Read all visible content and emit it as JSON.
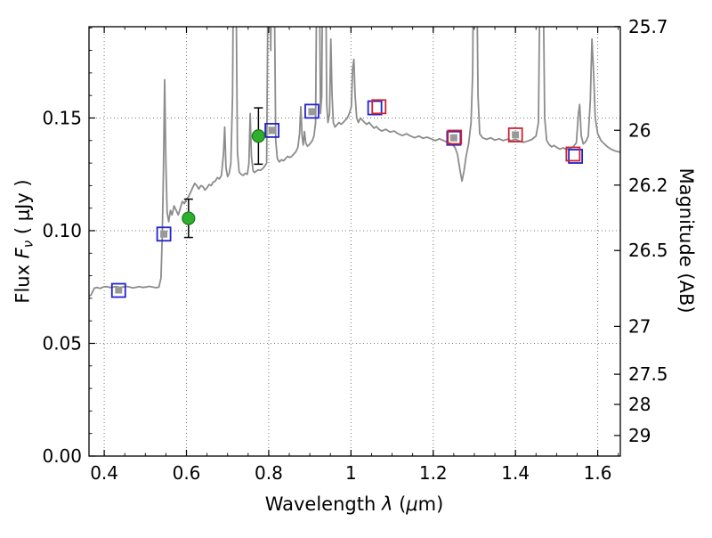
{
  "labels": {
    "xlabel_pre": "Wavelength ",
    "xlabel_lambda": "λ",
    "xlabel_mid": " (",
    "xlabel_mu": "μ",
    "xlabel_post": "m)",
    "ylabel_left_pre": "Flux ",
    "ylabel_left_F": "F",
    "ylabel_left_nu": "ν",
    "ylabel_left_suffix": " ( μJy )",
    "ylabel_right": "Magnitude (AB)"
  },
  "chart_data": {
    "type": "line",
    "title": "",
    "xlabel": "Wavelength λ (μm)",
    "ylabel_left": "Flux Fν ( μJy )",
    "ylabel_right": "Magnitude (AB)",
    "xlim": [
      0.363,
      1.655
    ],
    "ylim_flux": [
      0.0,
      0.1905
    ],
    "grid": true,
    "mag_zeropoint": 23.9,
    "x_ticks": {
      "values": [
        0.4,
        0.6,
        0.8,
        1.0,
        1.2,
        1.4,
        1.6
      ],
      "labels": [
        "0.4",
        "0.6",
        "0.8",
        "1",
        "1.2",
        "1.4",
        "1.6"
      ],
      "minor_step": 0.05
    },
    "y_left_ticks": {
      "values": [
        0.0,
        0.05,
        0.1,
        0.15
      ],
      "labels": [
        "0.00",
        "0.05",
        "0.10",
        "0.15"
      ],
      "minor_step": 0.01
    },
    "y_right_ticks": {
      "values": [
        25.7,
        26,
        26.2,
        26.5,
        27,
        27.5,
        28,
        29
      ],
      "labels": [
        "25.7",
        "26",
        "26.2",
        "26.5",
        "27",
        "27.5",
        "28",
        "29"
      ]
    },
    "series": {
      "model_spectrum": {
        "name": "model spectrum",
        "color": "#8c8c8c",
        "width": 1.8,
        "points": [
          [
            0.363,
            0.071
          ],
          [
            0.368,
            0.0715
          ],
          [
            0.372,
            0.073
          ],
          [
            0.376,
            0.0745
          ],
          [
            0.382,
            0.0748
          ],
          [
            0.39,
            0.0744
          ],
          [
            0.398,
            0.075
          ],
          [
            0.406,
            0.0752
          ],
          [
            0.414,
            0.0748
          ],
          [
            0.422,
            0.075
          ],
          [
            0.43,
            0.0752
          ],
          [
            0.438,
            0.0748
          ],
          [
            0.446,
            0.075
          ],
          [
            0.454,
            0.0753
          ],
          [
            0.462,
            0.075
          ],
          [
            0.47,
            0.0746
          ],
          [
            0.478,
            0.0749
          ],
          [
            0.486,
            0.0752
          ],
          [
            0.494,
            0.0748
          ],
          [
            0.502,
            0.075
          ],
          [
            0.51,
            0.0753
          ],
          [
            0.518,
            0.075
          ],
          [
            0.526,
            0.0747
          ],
          [
            0.533,
            0.075
          ],
          [
            0.538,
            0.079
          ],
          [
            0.541,
            0.096
          ],
          [
            0.544,
            0.125
          ],
          [
            0.547,
            0.167
          ],
          [
            0.55,
            0.13
          ],
          [
            0.553,
            0.108
          ],
          [
            0.557,
            0.104
          ],
          [
            0.561,
            0.109
          ],
          [
            0.565,
            0.107
          ],
          [
            0.57,
            0.111
          ],
          [
            0.575,
            0.109
          ],
          [
            0.58,
            0.107
          ],
          [
            0.585,
            0.11
          ],
          [
            0.59,
            0.113
          ],
          [
            0.595,
            0.112
          ],
          [
            0.6,
            0.114
          ],
          [
            0.605,
            0.115
          ],
          [
            0.61,
            0.117
          ],
          [
            0.615,
            0.119
          ],
          [
            0.62,
            0.121
          ],
          [
            0.625,
            0.12
          ],
          [
            0.63,
            0.1185
          ],
          [
            0.635,
            0.12
          ],
          [
            0.64,
            0.1195
          ],
          [
            0.645,
            0.118
          ],
          [
            0.65,
            0.119
          ],
          [
            0.655,
            0.1205
          ],
          [
            0.66,
            0.12
          ],
          [
            0.665,
            0.1215
          ],
          [
            0.67,
            0.122
          ],
          [
            0.675,
            0.1235
          ],
          [
            0.68,
            0.123
          ],
          [
            0.685,
            0.1245
          ],
          [
            0.69,
            0.134
          ],
          [
            0.693,
            0.146
          ],
          [
            0.696,
            0.128
          ],
          [
            0.7,
            0.124
          ],
          [
            0.704,
            0.1255
          ],
          [
            0.708,
            0.13
          ],
          [
            0.712,
            0.16
          ],
          [
            0.715,
            0.24
          ],
          [
            0.718,
            0.27
          ],
          [
            0.721,
            0.2
          ],
          [
            0.724,
            0.135
          ],
          [
            0.728,
            0.126
          ],
          [
            0.733,
            0.125
          ],
          [
            0.738,
            0.1245
          ],
          [
            0.743,
            0.1255
          ],
          [
            0.748,
            0.125
          ],
          [
            0.752,
            0.13
          ],
          [
            0.755,
            0.152
          ],
          [
            0.758,
            0.133
          ],
          [
            0.762,
            0.1265
          ],
          [
            0.766,
            0.1258
          ],
          [
            0.77,
            0.1265
          ],
          [
            0.775,
            0.127
          ],
          [
            0.78,
            0.1268
          ],
          [
            0.785,
            0.1275
          ],
          [
            0.79,
            0.1285
          ],
          [
            0.795,
            0.13
          ],
          [
            0.799,
            0.23
          ],
          [
            0.802,
            0.27
          ],
          [
            0.805,
            0.18
          ],
          [
            0.808,
            0.24
          ],
          [
            0.811,
            0.27
          ],
          [
            0.814,
            0.2
          ],
          [
            0.817,
            0.14
          ],
          [
            0.821,
            0.132
          ],
          [
            0.826,
            0.1305
          ],
          [
            0.831,
            0.1315
          ],
          [
            0.836,
            0.131
          ],
          [
            0.841,
            0.132
          ],
          [
            0.846,
            0.133
          ],
          [
            0.851,
            0.1325
          ],
          [
            0.856,
            0.133
          ],
          [
            0.861,
            0.134
          ],
          [
            0.866,
            0.135
          ],
          [
            0.871,
            0.137
          ],
          [
            0.875,
            0.143
          ],
          [
            0.878,
            0.155
          ],
          [
            0.881,
            0.142
          ],
          [
            0.884,
            0.138
          ],
          [
            0.887,
            0.144
          ],
          [
            0.89,
            0.139
          ],
          [
            0.894,
            0.1375
          ],
          [
            0.898,
            0.138
          ],
          [
            0.902,
            0.139
          ],
          [
            0.906,
            0.14
          ],
          [
            0.91,
            0.142
          ],
          [
            0.914,
            0.148
          ],
          [
            0.917,
            0.22
          ],
          [
            0.92,
            0.27
          ],
          [
            0.923,
            0.22
          ],
          [
            0.926,
            0.152
          ],
          [
            0.929,
            0.16
          ],
          [
            0.932,
            0.24
          ],
          [
            0.935,
            0.27
          ],
          [
            0.938,
            0.23
          ],
          [
            0.941,
            0.156
          ],
          [
            0.944,
            0.148
          ],
          [
            0.948,
            0.152
          ],
          [
            0.951,
            0.185
          ],
          [
            0.954,
            0.16
          ],
          [
            0.957,
            0.148
          ],
          [
            0.961,
            0.146
          ],
          [
            0.966,
            0.147
          ],
          [
            0.971,
            0.148
          ],
          [
            0.976,
            0.1472
          ],
          [
            0.981,
            0.148
          ],
          [
            0.986,
            0.149
          ],
          [
            0.991,
            0.15
          ],
          [
            0.996,
            0.152
          ],
          [
            1.001,
            0.155
          ],
          [
            1.004,
            0.172
          ],
          [
            1.007,
            0.176
          ],
          [
            1.01,
            0.16
          ],
          [
            1.014,
            0.15
          ],
          [
            1.018,
            0.148
          ],
          [
            1.023,
            0.15
          ],
          [
            1.028,
            0.149
          ],
          [
            1.033,
            0.148
          ],
          [
            1.038,
            0.1472
          ],
          [
            1.044,
            0.148
          ],
          [
            1.05,
            0.1468
          ],
          [
            1.056,
            0.1455
          ],
          [
            1.062,
            0.1462
          ],
          [
            1.068,
            0.145
          ],
          [
            1.075,
            0.1442
          ],
          [
            1.085,
            0.145
          ],
          [
            1.095,
            0.1438
          ],
          [
            1.105,
            0.1442
          ],
          [
            1.115,
            0.143
          ],
          [
            1.125,
            0.1422
          ],
          [
            1.135,
            0.143
          ],
          [
            1.145,
            0.142
          ],
          [
            1.155,
            0.1412
          ],
          [
            1.165,
            0.142
          ],
          [
            1.175,
            0.141
          ],
          [
            1.185,
            0.1415
          ],
          [
            1.195,
            0.1408
          ],
          [
            1.205,
            0.14
          ],
          [
            1.215,
            0.1408
          ],
          [
            1.225,
            0.14
          ],
          [
            1.235,
            0.1392
          ],
          [
            1.245,
            0.1385
          ],
          [
            1.253,
            0.137
          ],
          [
            1.259,
            0.134
          ],
          [
            1.265,
            0.127
          ],
          [
            1.27,
            0.122
          ],
          [
            1.275,
            0.1265
          ],
          [
            1.28,
            0.133
          ],
          [
            1.286,
            0.1385
          ],
          [
            1.292,
            0.148
          ],
          [
            1.296,
            0.17
          ],
          [
            1.299,
            0.24
          ],
          [
            1.302,
            0.27
          ],
          [
            1.305,
            0.23
          ],
          [
            1.309,
            0.16
          ],
          [
            1.313,
            0.143
          ],
          [
            1.32,
            0.1412
          ],
          [
            1.33,
            0.1405
          ],
          [
            1.34,
            0.1412
          ],
          [
            1.35,
            0.1402
          ],
          [
            1.36,
            0.1408
          ],
          [
            1.37,
            0.14
          ],
          [
            1.38,
            0.1406
          ],
          [
            1.39,
            0.14
          ],
          [
            1.4,
            0.1405
          ],
          [
            1.41,
            0.1398
          ],
          [
            1.42,
            0.1392
          ],
          [
            1.43,
            0.1398
          ],
          [
            1.44,
            0.1405
          ],
          [
            1.45,
            0.142
          ],
          [
            1.456,
            0.148
          ],
          [
            1.46,
            0.22
          ],
          [
            1.464,
            0.27
          ],
          [
            1.467,
            0.22
          ],
          [
            1.471,
            0.15
          ],
          [
            1.476,
            0.14
          ],
          [
            1.482,
            0.1382
          ],
          [
            1.488,
            0.1372
          ],
          [
            1.494,
            0.1378
          ],
          [
            1.5,
            0.137
          ],
          [
            1.508,
            0.1362
          ],
          [
            1.516,
            0.1368
          ],
          [
            1.524,
            0.136
          ],
          [
            1.532,
            0.1365
          ],
          [
            1.54,
            0.1372
          ],
          [
            1.548,
            0.139
          ],
          [
            1.553,
            0.152
          ],
          [
            1.556,
            0.156
          ],
          [
            1.56,
            0.142
          ],
          [
            1.565,
            0.1385
          ],
          [
            1.571,
            0.1395
          ],
          [
            1.577,
            0.142
          ],
          [
            1.582,
            0.158
          ],
          [
            1.586,
            0.185
          ],
          [
            1.59,
            0.17
          ],
          [
            1.594,
            0.15
          ],
          [
            1.6,
            0.143
          ],
          [
            1.608,
            0.14
          ],
          [
            1.616,
            0.1385
          ],
          [
            1.624,
            0.1372
          ],
          [
            1.632,
            0.1362
          ],
          [
            1.641,
            0.1355
          ],
          [
            1.65,
            0.135
          ],
          [
            1.655,
            0.1348
          ]
        ]
      },
      "blue_squares": {
        "name": "photometry (blue open squares)",
        "color": "#2222cc",
        "points": [
          [
            0.435,
            0.0735
          ],
          [
            0.545,
            0.0985
          ],
          [
            0.808,
            0.1445
          ],
          [
            0.905,
            0.153
          ],
          [
            1.058,
            0.1545
          ],
          [
            1.25,
            0.141
          ],
          [
            1.546,
            0.133
          ]
        ]
      },
      "red_squares": {
        "name": "photometry (red open squares)",
        "color": "#cc2233",
        "points": [
          [
            1.068,
            0.155
          ],
          [
            1.252,
            0.1415
          ],
          [
            1.4,
            0.1425
          ],
          [
            1.54,
            0.134
          ]
        ]
      },
      "gray_points": {
        "name": "model photometry (gray filled)",
        "color": "#999999",
        "points": [
          [
            0.435,
            0.0737
          ],
          [
            0.545,
            0.0985
          ],
          [
            0.808,
            0.1445
          ],
          [
            0.905,
            0.1528
          ],
          [
            1.25,
            0.1412
          ],
          [
            1.4,
            0.1425
          ]
        ]
      },
      "green_circles": {
        "name": "measured photometry (green circles with error bars)",
        "fill": "#2fae2f",
        "edge": "#137a13",
        "errorbar_color": "#000000",
        "points": [
          {
            "x": 0.605,
            "y": 0.1055,
            "yerr": 0.0085
          },
          {
            "x": 0.775,
            "y": 0.142,
            "yerr": 0.0125
          }
        ]
      }
    }
  }
}
